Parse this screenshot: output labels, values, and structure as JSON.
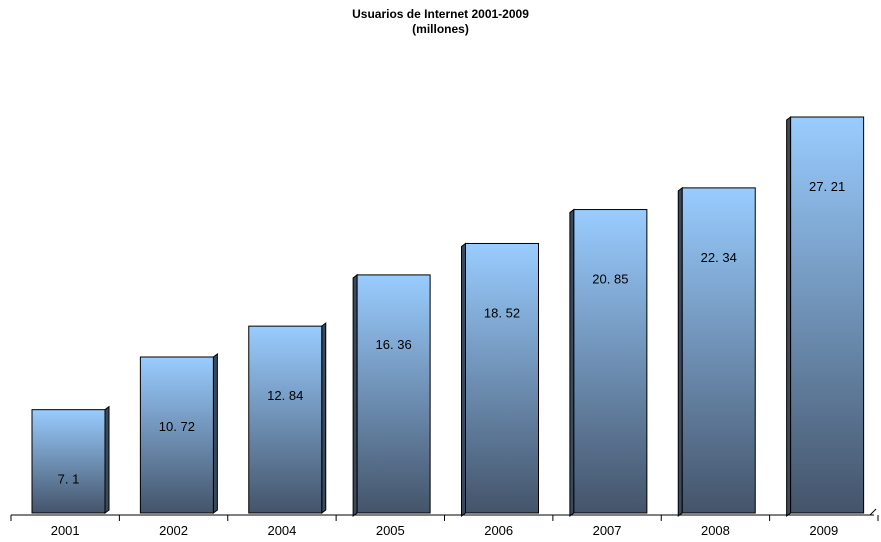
{
  "chart_data": {
    "type": "bar",
    "title": "Usuarios de Internet 2001-2009",
    "subtitle": "(millones)",
    "categories": [
      "2001",
      "2002",
      "2004",
      "2005",
      "2006",
      "2007",
      "2008",
      "2009"
    ],
    "values": [
      7.1,
      10.72,
      12.84,
      16.36,
      18.52,
      20.85,
      22.34,
      27.21
    ],
    "value_labels": [
      "7. 1",
      "10. 72",
      "12. 84",
      "16. 36",
      "18. 52",
      "20. 85",
      "22. 34",
      "27. 21"
    ],
    "xlabel": "",
    "ylabel": "",
    "ylim": [
      0,
      30
    ],
    "grid": false,
    "legend": "none",
    "style": "3d-column",
    "colors": {
      "bar_top": "#99ccff",
      "bar_bottom": "#44546a",
      "bar_side": "#3a4a5e",
      "bar_outline": "#000000"
    }
  }
}
